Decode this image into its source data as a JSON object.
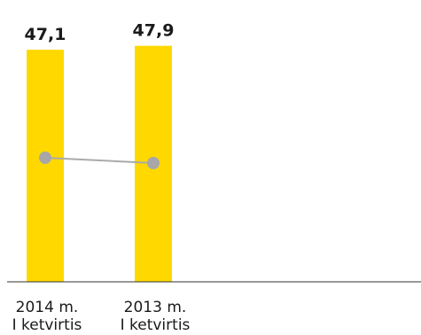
{
  "chart_data": {
    "type": "bar",
    "categories": [
      [
        "2014 m.",
        "I ketvirtis"
      ],
      [
        "2013 m.",
        "I ketvirtis"
      ]
    ],
    "series": [
      {
        "type": "bar",
        "values": [
          47.1,
          47.9
        ],
        "value_labels": [
          "47,1",
          "47,9"
        ]
      },
      {
        "type": "line",
        "values": [
          null,
          null
        ]
      }
    ],
    "colors": {
      "bar": "#ffd800",
      "line": "#aaaaaa",
      "marker": "#a7a7a9",
      "axis": "#333333"
    },
    "grid": false,
    "legend": "none"
  }
}
